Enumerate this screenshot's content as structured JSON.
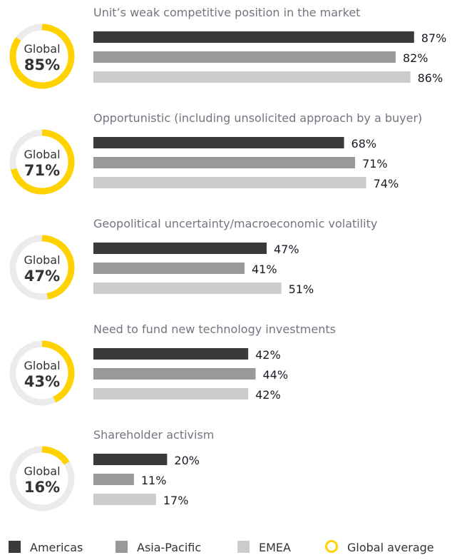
{
  "chart_data": {
    "type": "bar",
    "orientation": "horizontal",
    "xlim": [
      0,
      100
    ],
    "unit": "%",
    "series": [
      {
        "name": "Americas",
        "color": "#3a3a3c"
      },
      {
        "name": "Asia-Pacific",
        "color": "#999999"
      },
      {
        "name": "EMEA",
        "color": "#cccccc"
      }
    ],
    "global_label": "Global",
    "global_legend": {
      "name": "Global average",
      "color": "#ffd200"
    },
    "groups": [
      {
        "title": "Unit’s weak competitive position in the market",
        "global": 85,
        "values": [
          87,
          82,
          86
        ]
      },
      {
        "title": "Opportunistic (including unsolicited approach by a buyer)",
        "global": 71,
        "values": [
          68,
          71,
          74
        ]
      },
      {
        "title": "Geopolitical uncertainty/macroeconomic volatility",
        "global": 47,
        "values": [
          47,
          41,
          51
        ]
      },
      {
        "title": "Need to fund new technology investments",
        "global": 43,
        "values": [
          42,
          44,
          42
        ]
      },
      {
        "title": "Shareholder activism",
        "global": 16,
        "values": [
          20,
          11,
          17
        ]
      }
    ],
    "legend_position": "bottom"
  }
}
